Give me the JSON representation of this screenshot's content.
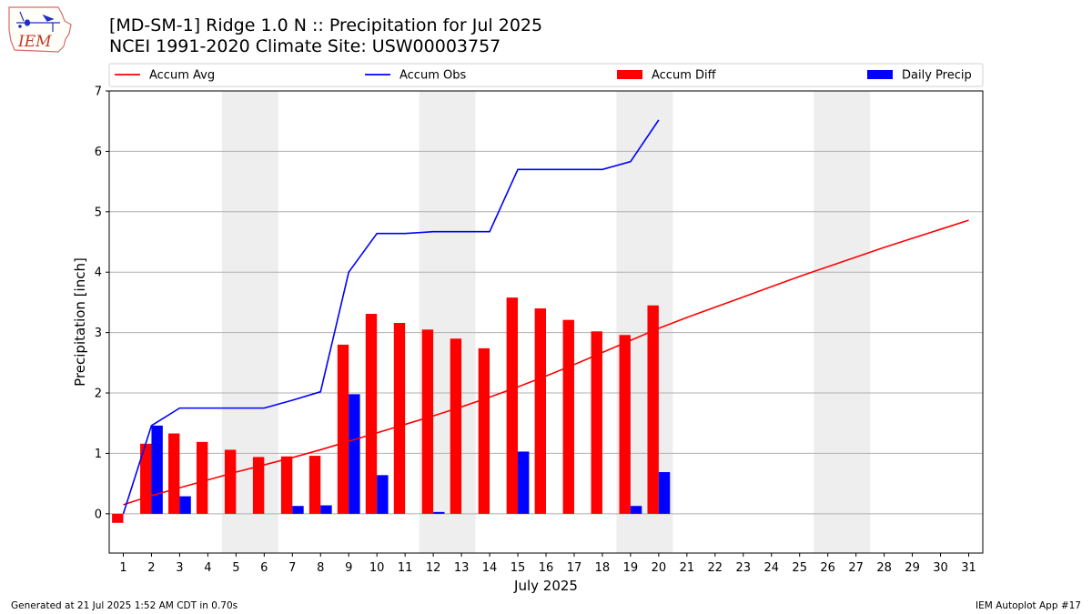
{
  "header": {
    "logo_text": "IEM",
    "title_line1": "[MD-SM-1] Ridge 1.0 N :: Precipitation for Jul 2025",
    "title_line2": "NCEI 1991-2020 Climate Site: USW00003757"
  },
  "footer": {
    "left": "Generated at 21 Jul 2025 1:52 AM CDT in 0.70s",
    "right": "IEM Autoplot App #17"
  },
  "colors": {
    "accum_avg": "#ff0000",
    "accum_obs": "#0000ff",
    "accum_diff": "#ff0000",
    "daily_precip": "#0000ff",
    "weekend_shade": "#eeeeee",
    "grid": "#b0b0b0"
  },
  "chart_data": {
    "type": "bar",
    "xlabel": "July 2025",
    "ylabel": "Precipitation [inch]",
    "ylim": [
      -0.65,
      7
    ],
    "xlim": [
      0.5,
      31.5
    ],
    "grid": "horizontal",
    "legend_placement": "top",
    "yticks": [
      0,
      1,
      2,
      3,
      4,
      5,
      6,
      7
    ],
    "days": [
      1,
      2,
      3,
      4,
      5,
      6,
      7,
      8,
      9,
      10,
      11,
      12,
      13,
      14,
      15,
      16,
      17,
      18,
      19,
      20,
      21,
      22,
      23,
      24,
      25,
      26,
      27,
      28,
      29,
      30,
      31
    ],
    "weekend_shaded_days": [
      [
        5,
        6
      ],
      [
        12,
        13
      ],
      [
        19,
        20
      ],
      [
        26,
        27
      ]
    ],
    "series": [
      {
        "name": "Accum Avg",
        "kind": "line",
        "x": [
          1,
          2,
          3,
          4,
          5,
          6,
          7,
          8,
          9,
          10,
          11,
          12,
          13,
          14,
          15,
          16,
          17,
          18,
          19,
          20,
          21,
          22,
          23,
          24,
          25,
          26,
          27,
          28,
          29,
          30,
          31
        ],
        "values": [
          0.15,
          0.3,
          0.43,
          0.56,
          0.69,
          0.81,
          0.93,
          1.06,
          1.2,
          1.34,
          1.48,
          1.62,
          1.77,
          1.93,
          2.1,
          2.28,
          2.47,
          2.67,
          2.87,
          3.07,
          3.25,
          3.42,
          3.59,
          3.76,
          3.93,
          4.09,
          4.25,
          4.41,
          4.56,
          4.71,
          4.86
        ]
      },
      {
        "name": "Accum Obs",
        "kind": "line",
        "x": [
          1,
          2,
          3,
          4,
          5,
          6,
          7,
          8,
          9,
          10,
          11,
          12,
          13,
          14,
          15,
          16,
          17,
          18,
          19,
          20
        ],
        "values": [
          0.0,
          1.46,
          1.75,
          1.75,
          1.75,
          1.75,
          1.88,
          2.02,
          4.0,
          4.64,
          4.64,
          4.67,
          4.67,
          4.67,
          5.7,
          5.7,
          5.7,
          5.7,
          5.83,
          6.52
        ]
      },
      {
        "name": "Accum Diff",
        "kind": "bar",
        "x": [
          1,
          2,
          3,
          4,
          5,
          6,
          7,
          8,
          9,
          10,
          11,
          12,
          13,
          14,
          15,
          16,
          17,
          18,
          19,
          20
        ],
        "values": [
          -0.15,
          1.16,
          1.33,
          1.19,
          1.06,
          0.94,
          0.95,
          0.96,
          2.8,
          3.31,
          3.16,
          3.05,
          2.9,
          2.74,
          3.58,
          3.4,
          3.21,
          3.02,
          2.96,
          3.45
        ]
      },
      {
        "name": "Daily Precip",
        "kind": "bar",
        "x": [
          1,
          2,
          3,
          4,
          5,
          6,
          7,
          8,
          9,
          10,
          11,
          12,
          13,
          14,
          15,
          16,
          17,
          18,
          19,
          20
        ],
        "values": [
          0.0,
          1.46,
          0.29,
          0.0,
          0.0,
          0.0,
          0.13,
          0.14,
          1.98,
          0.64,
          0.0,
          0.03,
          0.0,
          0.0,
          1.03,
          0.0,
          0.0,
          0.0,
          0.13,
          0.69
        ]
      }
    ]
  }
}
